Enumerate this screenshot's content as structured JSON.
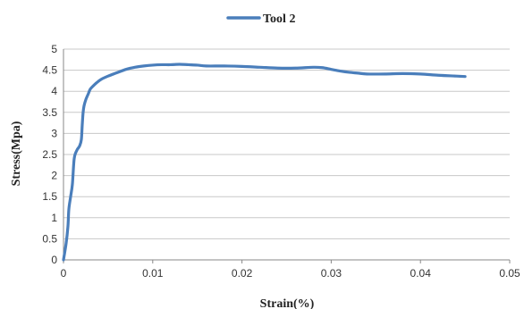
{
  "chart_data": {
    "type": "line",
    "xlabel": "Strain(%)",
    "ylabel": "Stress(Mpa)",
    "xlim": [
      0,
      0.05
    ],
    "ylim": [
      0,
      5
    ],
    "x_ticks": [
      "0",
      "0.01",
      "0.02",
      "0.03",
      "0.04",
      "0.05"
    ],
    "y_ticks": [
      "0",
      "0.5",
      "1",
      "1.5",
      "2",
      "2.5",
      "3",
      "3.5",
      "4",
      "4.5",
      "5"
    ],
    "grid": "horizontal",
    "legend_position": "top-center",
    "series": [
      {
        "name": "Tool 2",
        "color": "#4a7ebb",
        "x": [
          0,
          0.0003,
          0.0005,
          0.0006,
          0.0008,
          0.001,
          0.0012,
          0.0015,
          0.0018,
          0.002,
          0.0021,
          0.0022,
          0.0023,
          0.0025,
          0.0028,
          0.003,
          0.0033,
          0.0037,
          0.0042,
          0.005,
          0.006,
          0.007,
          0.008,
          0.009,
          0.01,
          0.011,
          0.012,
          0.013,
          0.014,
          0.015,
          0.016,
          0.018,
          0.02,
          0.022,
          0.024,
          0.026,
          0.028,
          0.029,
          0.03,
          0.031,
          0.032,
          0.033,
          0.034,
          0.036,
          0.038,
          0.04,
          0.042,
          0.044,
          0.045
        ],
        "y": [
          0,
          0.4,
          0.8,
          1.2,
          1.5,
          1.8,
          2.4,
          2.6,
          2.7,
          2.85,
          3.2,
          3.5,
          3.65,
          3.8,
          3.95,
          4.05,
          4.12,
          4.2,
          4.28,
          4.36,
          4.44,
          4.52,
          4.57,
          4.6,
          4.62,
          4.63,
          4.63,
          4.64,
          4.63,
          4.62,
          4.6,
          4.6,
          4.59,
          4.57,
          4.55,
          4.55,
          4.57,
          4.56,
          4.52,
          4.48,
          4.45,
          4.43,
          4.41,
          4.41,
          4.42,
          4.41,
          4.38,
          4.36,
          4.35
        ]
      }
    ]
  }
}
